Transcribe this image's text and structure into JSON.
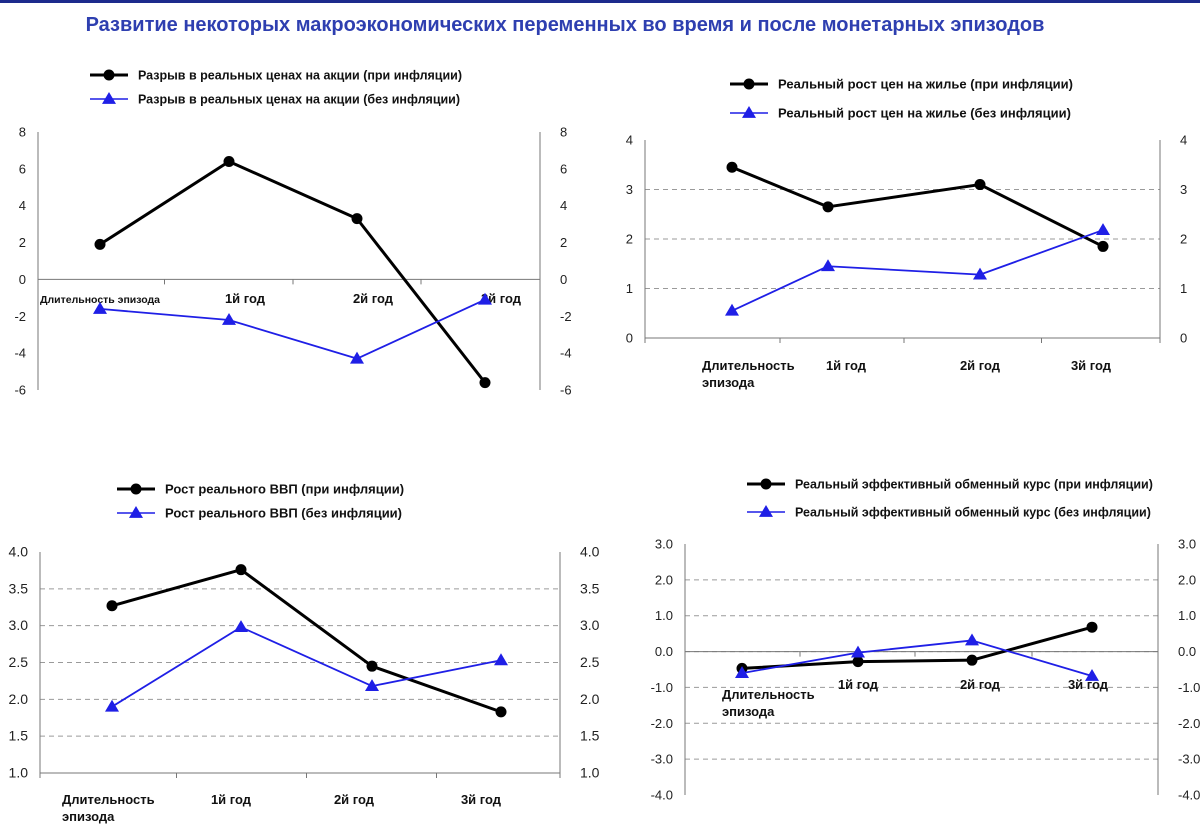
{
  "page": {
    "title": "Развитие некоторых макроэкономических переменных во время и после монетарных эпизодов",
    "title_color": "#2e3fb0",
    "rule_color": "#1d2a8c"
  },
  "colors": {
    "with_inflation": "#000000",
    "without_inflation": "#1f1fe6",
    "grid": "#9a9a9a",
    "axis": "#777777"
  },
  "chart_data": [
    {
      "type": "line",
      "categories": [
        "Длительность эпизода",
        "1й год",
        "2й год",
        "3й год"
      ],
      "series": [
        {
          "name": "Разрыв в реальных ценах на акции (при инфляции)",
          "values": [
            1.9,
            6.4,
            3.3,
            -5.6
          ],
          "marker": "circle"
        },
        {
          "name": "Разрыв в реальных ценах на акции (без инфляции)",
          "values": [
            -1.6,
            -2.2,
            -4.3,
            -1.1
          ],
          "marker": "triangle"
        }
      ],
      "ylim": [
        -6,
        8
      ],
      "yticks": [
        "8",
        "6",
        "4",
        "2",
        "0",
        "-2",
        "-4",
        "-6"
      ],
      "grid": false,
      "legend": "top"
    },
    {
      "type": "line",
      "categories": [
        "Длительность эпизода",
        "1й год",
        "2й год",
        "3й год"
      ],
      "series": [
        {
          "name": "Реальный рост цен на жилье (при инфляции)",
          "values": [
            3.45,
            2.65,
            3.1,
            1.85
          ],
          "marker": "circle"
        },
        {
          "name": "Реальный рост цен на жилье (без инфляции)",
          "values": [
            0.55,
            1.45,
            1.28,
            2.18
          ],
          "marker": "triangle"
        }
      ],
      "ylim": [
        0,
        4
      ],
      "yticks": [
        "4",
        "3",
        "2",
        "1",
        "0"
      ],
      "grid": true,
      "legend": "top"
    },
    {
      "type": "line",
      "categories": [
        "Длительность эпизода",
        "1й год",
        "2й год",
        "3й год"
      ],
      "series": [
        {
          "name": "Рост реального ВВП (при инфляции)",
          "values": [
            3.27,
            3.76,
            2.45,
            1.83
          ],
          "marker": "circle"
        },
        {
          "name": "Рост реального ВВП (без инфляции)",
          "values": [
            1.9,
            2.98,
            2.18,
            2.53
          ],
          "marker": "triangle"
        }
      ],
      "ylim": [
        1.0,
        4.0
      ],
      "yticks": [
        "4.0",
        "3.5",
        "3.0",
        "2.5",
        "2.0",
        "1.5",
        "1.0"
      ],
      "grid": true,
      "legend": "top"
    },
    {
      "type": "line",
      "categories": [
        "Длительность эпизода",
        "1й год",
        "2й год",
        "3й год"
      ],
      "series": [
        {
          "name": "Реальный эффективный обменный курс (при инфляции)",
          "values": [
            -0.47,
            -0.28,
            -0.24,
            0.68
          ],
          "marker": "circle"
        },
        {
          "name": "Реальный эффективный обменный курс (без инфляции)",
          "values": [
            -0.6,
            -0.03,
            0.31,
            -0.68
          ],
          "marker": "triangle"
        }
      ],
      "ylim": [
        -4.0,
        3.0
      ],
      "yticks": [
        "3.0",
        "2.0",
        "1.0",
        "0.0",
        "-1.0",
        "-2.0",
        "-3.0",
        "-4.0"
      ],
      "grid": true,
      "legend": "top"
    }
  ]
}
